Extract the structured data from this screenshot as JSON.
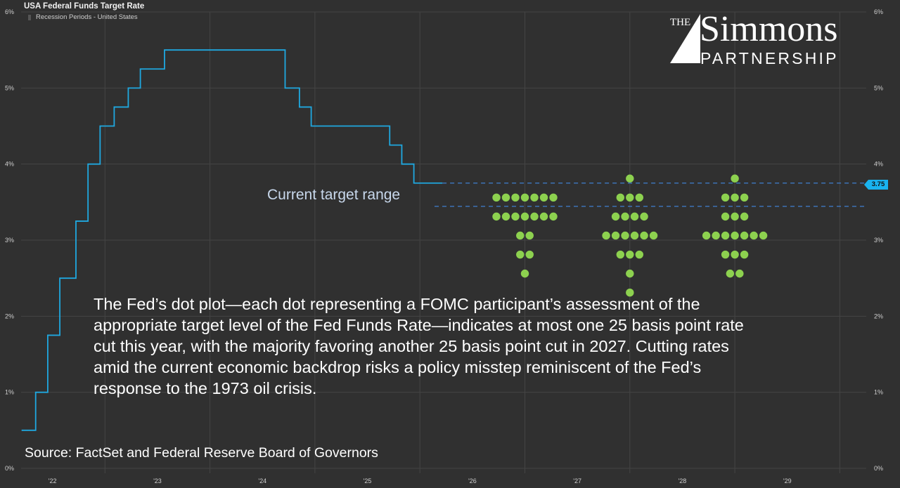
{
  "title": "USA Federal Funds Target Rate",
  "legend": {
    "label": "Recession Periods - United States"
  },
  "logo": {
    "line1": "THE",
    "line2": "Simmons",
    "line3": "PARTNERSHIP"
  },
  "annotations": {
    "current_range_label": "Current target range",
    "commentary_lines": [
      "The Fed’s dot plot—each dot representing a FOMC participant’s assessment of the",
      "appropriate target level of the Fed Funds Rate—indicates at most one 25 basis point rate",
      "cut this year, with the majority favoring another 25 basis point cut in 2027. Cutting rates",
      "amid the current economic backdrop risks a policy misstep reminiscent of the Fed’s",
      "response to the 1973 oil crisis."
    ],
    "source": "Source: FactSet and Federal Reserve Board of Governors",
    "last_value_badge": "3.75"
  },
  "colors": {
    "background": "#303030",
    "grid": "#444444",
    "rate_line": "#1fa8e0",
    "dots": "#8dd14f",
    "range_dash": "#3f7fd0",
    "badge": "#19b3f0"
  },
  "chart_data": {
    "type": "line",
    "title": "USA Federal Funds Target Rate",
    "x_ticks": [
      "'22",
      "'23",
      "'24",
      "'25",
      "'26",
      "'27",
      "'28",
      "'29"
    ],
    "y_ticks": [
      "0%",
      "1%",
      "2%",
      "3%",
      "4%",
      "5%",
      "6%"
    ],
    "ylim": [
      0,
      6
    ],
    "xlim": [
      "2022-03",
      "2030-03"
    ],
    "grid": true,
    "rate_steps": [
      {
        "date": "2022-03-17",
        "value": 0.5
      },
      {
        "date": "2022-05-05",
        "value": 1.0
      },
      {
        "date": "2022-06-16",
        "value": 1.75
      },
      {
        "date": "2022-07-28",
        "value": 2.5
      },
      {
        "date": "2022-09-22",
        "value": 3.25
      },
      {
        "date": "2022-11-03",
        "value": 4.0
      },
      {
        "date": "2022-12-15",
        "value": 4.5
      },
      {
        "date": "2023-02-02",
        "value": 4.75
      },
      {
        "date": "2023-03-23",
        "value": 5.0
      },
      {
        "date": "2023-05-04",
        "value": 5.25
      },
      {
        "date": "2023-07-27",
        "value": 5.5
      },
      {
        "date": "2024-09-19",
        "value": 5.0
      },
      {
        "date": "2024-11-08",
        "value": 4.75
      },
      {
        "date": "2024-12-19",
        "value": 4.5
      },
      {
        "date": "2025-09-18",
        "value": 4.25
      },
      {
        "date": "2025-10-30",
        "value": 4.0
      },
      {
        "date": "2025-12-11",
        "value": 3.75
      },
      {
        "date": "2026-03-20",
        "value": 3.75
      }
    ],
    "current_range": {
      "upper": 3.75,
      "lower": 3.5
    },
    "dot_plot": [
      {
        "year": 2026,
        "rows": [
          {
            "value": 3.625,
            "count": 7
          },
          {
            "value": 3.375,
            "count": 7
          },
          {
            "value": 3.125,
            "count": 2
          },
          {
            "value": 2.875,
            "count": 2
          },
          {
            "value": 2.625,
            "count": 1
          }
        ]
      },
      {
        "year": 2027,
        "rows": [
          {
            "value": 3.875,
            "count": 1
          },
          {
            "value": 3.625,
            "count": 3
          },
          {
            "value": 3.375,
            "count": 4
          },
          {
            "value": 3.125,
            "count": 6
          },
          {
            "value": 2.875,
            "count": 3
          },
          {
            "value": 2.625,
            "count": 1
          },
          {
            "value": 2.375,
            "count": 1
          }
        ]
      },
      {
        "year": 2028,
        "rows": [
          {
            "value": 3.875,
            "count": 1
          },
          {
            "value": 3.625,
            "count": 3
          },
          {
            "value": 3.375,
            "count": 3
          },
          {
            "value": 3.125,
            "count": 7
          },
          {
            "value": 2.875,
            "count": 3
          },
          {
            "value": 2.625,
            "count": 2
          }
        ]
      }
    ]
  }
}
